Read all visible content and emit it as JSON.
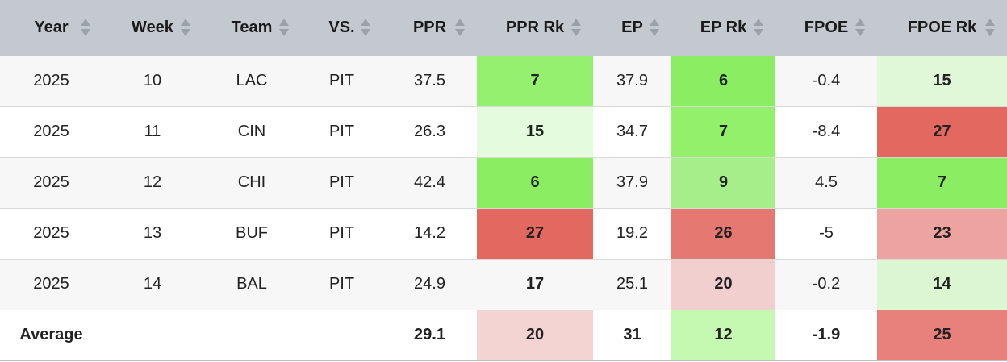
{
  "columns": [
    {
      "label": "Year",
      "sort_offset": 95
    },
    {
      "label": "Week",
      "sort_offset": 95
    },
    {
      "label": "Team",
      "sort_offset": 95
    },
    {
      "label": "VS.",
      "sort_offset": 95
    },
    {
      "label": "PPR",
      "sort_offset": 95
    },
    {
      "label": "PPR Rk",
      "sort_offset": 95
    },
    {
      "label": "EP",
      "sort_offset": 95
    },
    {
      "label": "EP Rk",
      "sort_offset": 95
    },
    {
      "label": "FPOE",
      "sort_offset": 95
    },
    {
      "label": "FPOE Rk",
      "sort_offset": 95
    }
  ],
  "rows": [
    {
      "year": "2025",
      "week": "10",
      "team": "LAC",
      "vs": "PIT",
      "ppr": "37.5",
      "ppr_rk": "7",
      "ep": "37.9",
      "ep_rk": "6",
      "fpoe": "-0.4",
      "fpoe_rk": "15",
      "colors": {
        "ppr_rk": "#94f06e",
        "ep_rk": "#8bee62",
        "fpoe_rk": "#e1f8d8"
      }
    },
    {
      "year": "2025",
      "week": "11",
      "team": "CIN",
      "vs": "PIT",
      "ppr": "26.3",
      "ppr_rk": "15",
      "ep": "34.7",
      "ep_rk": "7",
      "fpoe": "-8.4",
      "fpoe_rk": "27",
      "colors": {
        "ppr_rk": "#e4fbdd",
        "ep_rk": "#93f06b",
        "fpoe_rk": "#e36860"
      }
    },
    {
      "year": "2025",
      "week": "12",
      "team": "CHI",
      "vs": "PIT",
      "ppr": "42.4",
      "ppr_rk": "6",
      "ep": "37.9",
      "ep_rk": "9",
      "fpoe": "4.5",
      "fpoe_rk": "7",
      "colors": {
        "ppr_rk": "#8bee62",
        "ep_rk": "#a6ee8a",
        "fpoe_rk": "#8bee62"
      }
    },
    {
      "year": "2025",
      "week": "13",
      "team": "BUF",
      "vs": "PIT",
      "ppr": "14.2",
      "ppr_rk": "27",
      "ep": "19.2",
      "ep_rk": "26",
      "fpoe": "-5",
      "fpoe_rk": "23",
      "colors": {
        "ppr_rk": "#e36860",
        "ep_rk": "#e67872",
        "fpoe_rk": "#eda3a0"
      }
    },
    {
      "year": "2025",
      "week": "14",
      "team": "BAL",
      "vs": "PIT",
      "ppr": "24.9",
      "ppr_rk": "17",
      "ep": "25.1",
      "ep_rk": "20",
      "fpoe": "-0.2",
      "fpoe_rk": "14",
      "colors": {
        "ppr_rk": "",
        "ep_rk": "#f0cfce",
        "fpoe_rk": "#dbf6d0"
      }
    }
  ],
  "average": {
    "label": "Average",
    "ppr": "29.1",
    "ppr_rk": "20",
    "ep": "31",
    "ep_rk": "12",
    "fpoe": "-1.9",
    "fpoe_rk": "25",
    "colors": {
      "ppr_rk": "#f4d3d3",
      "ep_rk": "#c5f8b1",
      "fpoe_rk": "#e8807b"
    }
  }
}
